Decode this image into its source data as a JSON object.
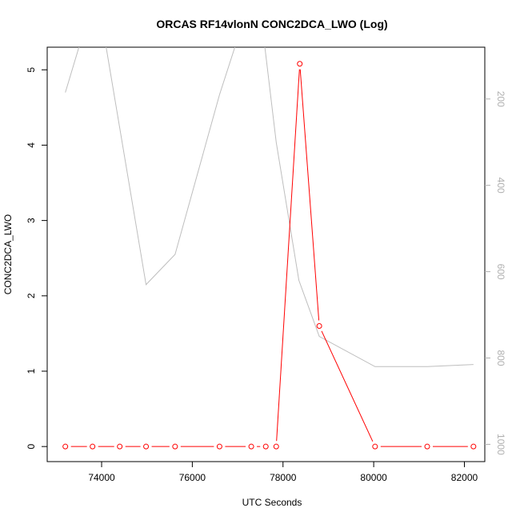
{
  "chart_data": {
    "type": "line",
    "title": "ORCAS RF14vlonN CONC2DCA_LWO (Log)",
    "xlabel": "UTC Seconds",
    "ylabel": "CONC2DCA_LWO",
    "xlim": [
      72800,
      82450
    ],
    "ylim": [
      -0.2,
      5.3
    ],
    "x_ticks": [
      74000,
      76000,
      78000,
      80000,
      82000
    ],
    "y_ticks": [
      0,
      1,
      2,
      3,
      4,
      5
    ],
    "y2_ticks": [
      200,
      400,
      600,
      800,
      1000
    ],
    "y2_range_top_to_bottom": [
      80,
      1040
    ],
    "grid": false,
    "series": [
      {
        "role": "primary",
        "color": "#ff0000",
        "markers": "open-circle",
        "x": [
          73200,
          73800,
          74400,
          74980,
          75620,
          76600,
          77300,
          77620,
          77850,
          78370,
          78800,
          80030,
          81180,
          82200
        ],
        "y": [
          0,
          0,
          0,
          0,
          0,
          0,
          0,
          0,
          0,
          5.08,
          1.6,
          0,
          0,
          0
        ]
      },
      {
        "role": "secondary",
        "color": "#bebebe",
        "markers": "none",
        "x": [
          73200,
          73500,
          73800,
          74100,
          74980,
          75620,
          76600,
          77000,
          77450,
          77600,
          77850,
          78350,
          78800,
          80030,
          81180,
          82200
        ],
        "y": [
          185,
          80,
          60,
          80,
          630,
          560,
          190,
          60,
          40,
          80,
          300,
          620,
          750,
          820,
          820,
          815
        ]
      }
    ]
  }
}
